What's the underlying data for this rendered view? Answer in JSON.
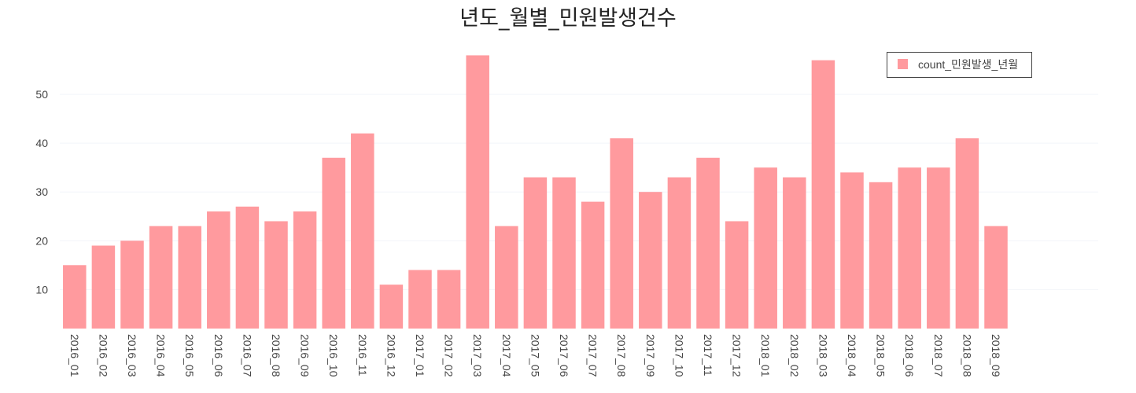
{
  "chart_data": {
    "type": "bar",
    "title": "년도_월별_민원발생건수",
    "categories": [
      "2016_01",
      "2016_02",
      "2016_03",
      "2016_04",
      "2016_05",
      "2016_06",
      "2016_07",
      "2016_08",
      "2016_09",
      "2016_10",
      "2016_11",
      "2016_12",
      "2017_01",
      "2017_02",
      "2017_03",
      "2017_04",
      "2017_05",
      "2017_06",
      "2017_07",
      "2017_08",
      "2017_09",
      "2017_10",
      "2017_11",
      "2017_12",
      "2018_01",
      "2018_02",
      "2018_03",
      "2018_04",
      "2018_05",
      "2018_06",
      "2018_07",
      "2018_08",
      "2018_09"
    ],
    "series": [
      {
        "name": "count_민원발생_년월",
        "values": [
          15,
          19,
          20,
          23,
          23,
          26,
          27,
          24,
          26,
          37,
          42,
          11,
          14,
          14,
          58,
          23,
          33,
          33,
          28,
          41,
          30,
          33,
          37,
          24,
          35,
          33,
          57,
          34,
          32,
          35,
          35,
          41,
          23
        ]
      }
    ],
    "yticks": [
      10,
      20,
      30,
      40,
      50
    ],
    "ylim": [
      2,
      60
    ],
    "grid": true,
    "legend_position": "top-right",
    "bar_color": "#ff9a9e",
    "xlabel": "",
    "ylabel": ""
  }
}
